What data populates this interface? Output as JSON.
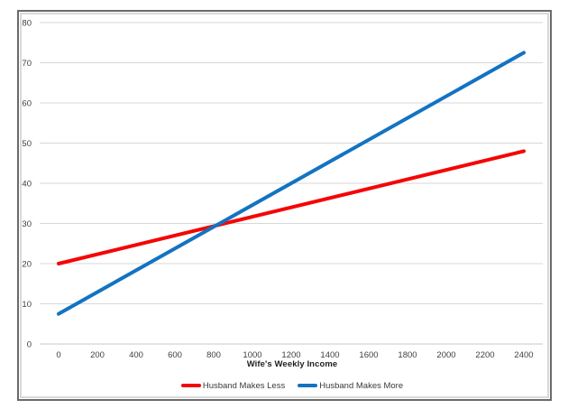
{
  "chart_data": {
    "type": "line",
    "title": "",
    "xlabel": "Wife's Weekly Income",
    "ylabel": "",
    "xlim": [
      0,
      2400
    ],
    "ylim": [
      0,
      80
    ],
    "x_ticks": [
      0,
      200,
      400,
      600,
      800,
      1000,
      1200,
      1400,
      1600,
      1800,
      2000,
      2200,
      2400
    ],
    "y_ticks": [
      0,
      10,
      20,
      30,
      40,
      50,
      60,
      70,
      80
    ],
    "grid": "horizontal",
    "legend_position": "bottom",
    "series": [
      {
        "name": "Husband Makes Less",
        "color": "#f50505",
        "points": [
          [
            0,
            20
          ],
          [
            2400,
            48
          ]
        ]
      },
      {
        "name": "Husband Makes More",
        "color": "#1373c2",
        "points": [
          [
            0,
            7.5
          ],
          [
            2400,
            72.5
          ]
        ]
      }
    ]
  },
  "colors": {
    "gridline": "#d7d7d7",
    "baseline": "#c8c8c8",
    "tick_text": "#3f3f3f",
    "frame_border": "#6a6a6c",
    "frame_inner": "#d9d9d9"
  }
}
